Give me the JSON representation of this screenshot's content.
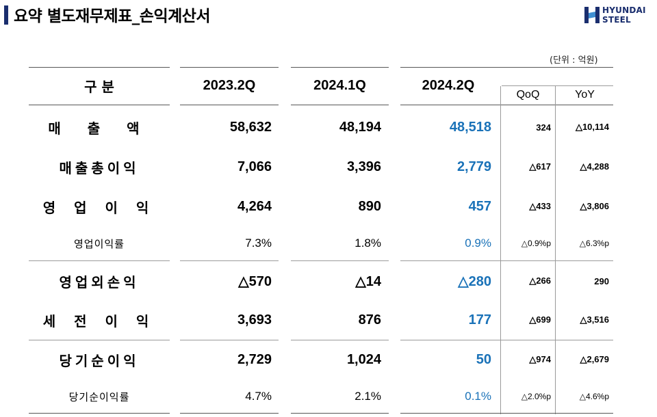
{
  "header": {
    "title": "요약 별도재무제표_손익계산서",
    "logo_text": [
      "HYUNDAI",
      "STEEL"
    ],
    "unit": "(단위 : 억원)"
  },
  "table": {
    "columns": {
      "category": "구 분",
      "p1": "2023.2Q",
      "p2": "2024.1Q",
      "p3": "2024.2Q",
      "qoq": "QoQ",
      "yoy": "YoY"
    },
    "rows": [
      {
        "label": "매 출 액",
        "p1": "58,632",
        "p2": "48,194",
        "p3": "48,518",
        "qoq": "324",
        "yoy": "△10,114"
      },
      {
        "label": "매출총이익",
        "p1": "7,066",
        "p2": "3,396",
        "p3": "2,779",
        "qoq": "△617",
        "yoy": "△4,288"
      },
      {
        "label": "영 업 이 익",
        "p1": "4,264",
        "p2": "890",
        "p3": "457",
        "qoq": "△433",
        "yoy": "△3,806"
      },
      {
        "label": "영업이익률",
        "p1": "7.3%",
        "p2": "1.8%",
        "p3": "0.9%",
        "qoq": "△0.9%p",
        "yoy": "△6.3%p"
      },
      {
        "label": "영업외손익",
        "p1": "△570",
        "p2": "△14",
        "p3": "△280",
        "qoq": "△266",
        "yoy": "290"
      },
      {
        "label": "세 전 이 익",
        "p1": "3,693",
        "p2": "876",
        "p3": "177",
        "qoq": "△699",
        "yoy": "△3,516"
      },
      {
        "label": "당기순이익",
        "p1": "2,729",
        "p2": "1,024",
        "p3": "50",
        "qoq": "△974",
        "yoy": "△2,679"
      },
      {
        "label": "당기순이익률",
        "p1": "4.7%",
        "p2": "2.1%",
        "p3": "0.1%",
        "qoq": "△2.0%p",
        "yoy": "△4.6%p"
      }
    ]
  },
  "colors": {
    "highlight": "#1a72b8",
    "brand": "#1a2e6e"
  }
}
